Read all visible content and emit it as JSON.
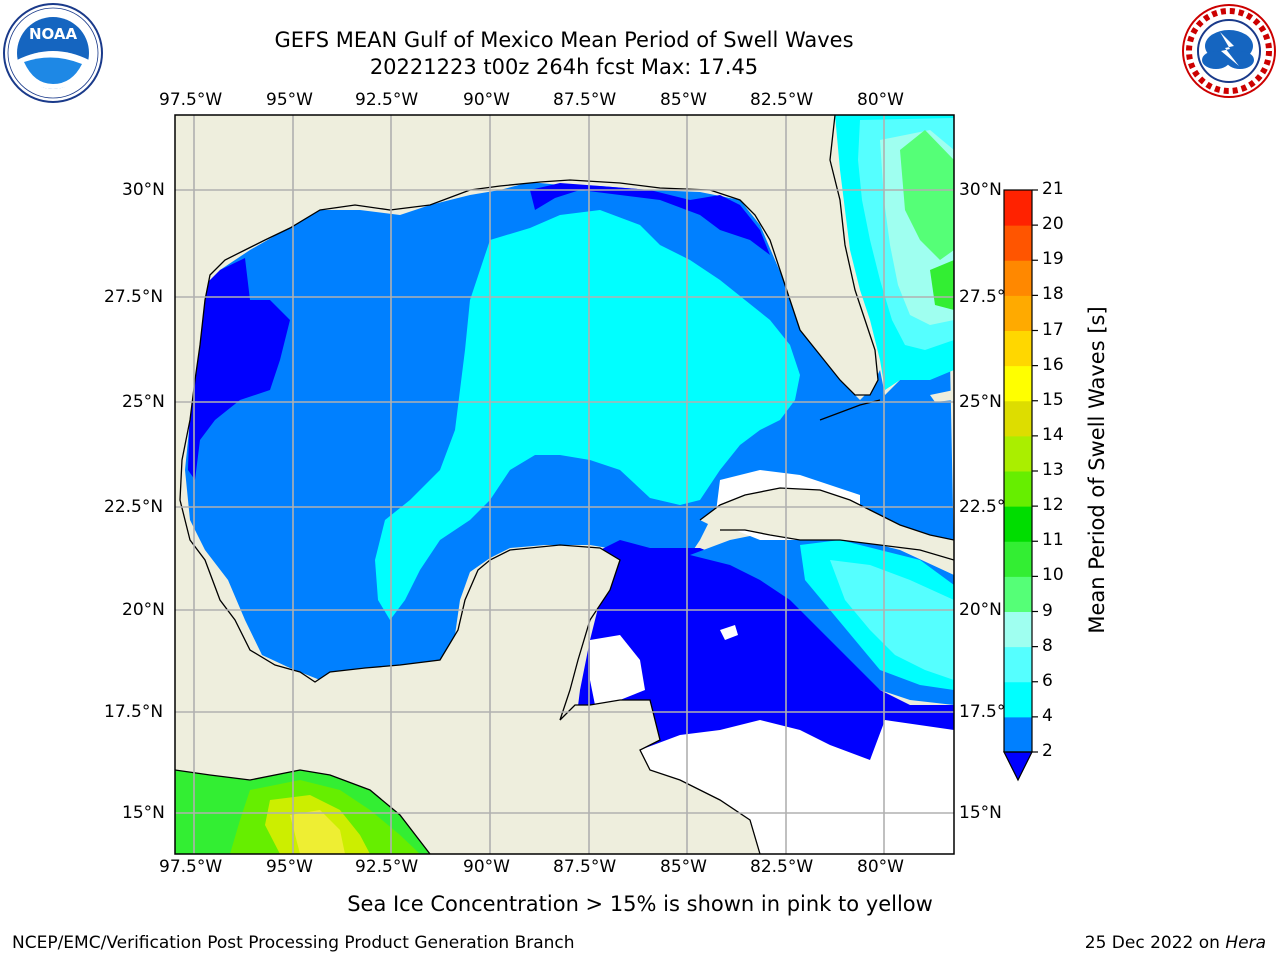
{
  "header": {
    "title_line1": "GEFS MEAN Gulf of Mexico Mean Period of Swell Waves",
    "title_line2": "20221223 t00z 264h fcst   Max: 17.45"
  },
  "logos": {
    "left": {
      "icon": "noaa-logo-icon",
      "center_text": "NOAA",
      "ring_text": "NATIONAL OCEANIC AND ATMOSPHERIC ADMINISTRATION · U.S. DEPARTMENT OF COMMERCE"
    },
    "right": {
      "icon": "nws-logo-icon",
      "ring_text": "NATIONAL WEATHER SERVICE"
    }
  },
  "map": {
    "lon_ticks": [
      "97.5°W",
      "95°W",
      "92.5°W",
      "90°W",
      "87.5°W",
      "85°W",
      "82.5°W",
      "80°W"
    ],
    "lat_ticks": [
      "30°N",
      "27.5°N",
      "25°N",
      "22.5°N",
      "20°N",
      "17.5°N",
      "15°N"
    ],
    "colors": {
      "land": "#eeeedd",
      "coast": "#000000",
      "grid": "#b0b0b0",
      "ice_mask": "#ffffff"
    }
  },
  "colorbar": {
    "label": "Mean Period of Swell Waves [s]",
    "ticks": [
      "2",
      "4",
      "6",
      "8",
      "9",
      "10",
      "11",
      "12",
      "13",
      "14",
      "15",
      "16",
      "17",
      "18",
      "19",
      "20",
      "21"
    ],
    "colors": [
      "#0000ff",
      "#0080ff",
      "#00ffff",
      "#55ffff",
      "#9ffff0",
      "#55ff77",
      "#33ee33",
      "#00dd00",
      "#66ee00",
      "#aaee00",
      "#dddd00",
      "#ffff00",
      "#ffd700",
      "#ffaa00",
      "#ff8800",
      "#ff5500",
      "#ff2200",
      "#ff0000"
    ]
  },
  "footer": {
    "note": "Sea Ice Concentration > 15% is shown in pink to yellow",
    "left": "NCEP/EMC/Verification Post Processing Product Generation Branch",
    "right_prefix": "25 Dec 2022 on",
    "right_host": "Hera"
  }
}
